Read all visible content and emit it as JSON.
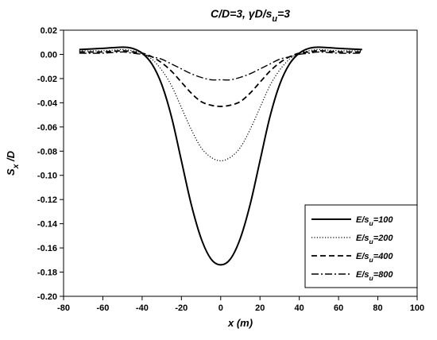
{
  "chart_data": {
    "type": "line",
    "title": {
      "main": "C/D=3, γD/s",
      "sub": "u",
      "tail": "=3"
    },
    "xlabel": {
      "main": "x",
      "unit": "(m)"
    },
    "ylabel": {
      "main": "S",
      "sub": "x",
      "tail": " /D"
    },
    "xlim": [
      -80,
      100
    ],
    "ylim": [
      -0.2,
      0.02
    ],
    "x_ticks": [
      -80,
      -60,
      -40,
      -20,
      0,
      20,
      40,
      60,
      80,
      100
    ],
    "x_tick_labels": [
      "-80",
      "-60",
      "-40",
      "-20",
      "0",
      "20",
      "40",
      "60",
      "80",
      "100"
    ],
    "y_ticks": [
      0.02,
      0.0,
      -0.02,
      -0.04,
      -0.06,
      -0.08,
      -0.1,
      -0.12,
      -0.14,
      -0.16,
      -0.18,
      -0.2
    ],
    "y_tick_labels": [
      "0.02",
      "0.00",
      "-0.02",
      "-0.04",
      "-0.06",
      "-0.08",
      "-0.10",
      "-0.12",
      "-0.14",
      "-0.16",
      "-0.18",
      "-0.20"
    ],
    "grid": false,
    "legend_position": "bottom-right",
    "series": [
      {
        "name": {
          "main": "E/s",
          "sub": "u",
          "tail": "=100"
        },
        "line_style": "solid",
        "x": [
          -72,
          -60,
          -50,
          -45,
          -40,
          -35,
          -30,
          -25,
          -20,
          -15,
          -10,
          -5,
          0,
          5,
          10,
          15,
          20,
          25,
          30,
          35,
          40,
          45,
          50,
          60,
          72
        ],
        "y": [
          0.004,
          0.005,
          0.006,
          0.005,
          0.001,
          -0.008,
          -0.025,
          -0.052,
          -0.088,
          -0.124,
          -0.152,
          -0.169,
          -0.174,
          -0.169,
          -0.152,
          -0.124,
          -0.088,
          -0.052,
          -0.025,
          -0.008,
          0.001,
          0.005,
          0.006,
          0.005,
          0.004
        ]
      },
      {
        "name": {
          "main": "E/s",
          "sub": "u",
          "tail": "=200"
        },
        "line_style": "dotted",
        "x": [
          -72,
          -60,
          -50,
          -45,
          -40,
          -35,
          -30,
          -25,
          -20,
          -15,
          -10,
          -5,
          0,
          5,
          10,
          15,
          20,
          25,
          30,
          35,
          40,
          45,
          50,
          60,
          72
        ],
        "y": [
          0.003,
          0.003,
          0.004,
          0.003,
          0.001,
          -0.004,
          -0.013,
          -0.026,
          -0.044,
          -0.062,
          -0.077,
          -0.085,
          -0.088,
          -0.085,
          -0.077,
          -0.062,
          -0.044,
          -0.026,
          -0.013,
          -0.004,
          0.001,
          0.003,
          0.004,
          0.003,
          0.003
        ]
      },
      {
        "name": {
          "main": "E/s",
          "sub": "u",
          "tail": "=400"
        },
        "line_style": "dashed",
        "x": [
          -72,
          -60,
          -50,
          -45,
          -40,
          -35,
          -30,
          -25,
          -20,
          -15,
          -10,
          -5,
          0,
          5,
          10,
          15,
          20,
          25,
          30,
          35,
          40,
          45,
          50,
          60,
          72
        ],
        "y": [
          0.002,
          0.002,
          0.003,
          0.002,
          0.001,
          -0.002,
          -0.007,
          -0.014,
          -0.023,
          -0.032,
          -0.039,
          -0.042,
          -0.043,
          -0.042,
          -0.039,
          -0.032,
          -0.023,
          -0.014,
          -0.007,
          -0.002,
          0.001,
          0.002,
          0.003,
          0.002,
          0.002
        ]
      },
      {
        "name": {
          "main": "E/s",
          "sub": "u",
          "tail": "=800"
        },
        "line_style": "dash-dot",
        "x": [
          -72,
          -60,
          -50,
          -45,
          -40,
          -35,
          -30,
          -25,
          -20,
          -15,
          -10,
          -5,
          0,
          5,
          10,
          15,
          20,
          25,
          30,
          35,
          40,
          45,
          50,
          60,
          72
        ],
        "y": [
          0.001,
          0.001,
          0.002,
          0.001,
          0.0,
          -0.002,
          -0.004,
          -0.008,
          -0.012,
          -0.016,
          -0.019,
          -0.021,
          -0.021,
          -0.021,
          -0.019,
          -0.016,
          -0.012,
          -0.008,
          -0.004,
          -0.002,
          0.0,
          0.001,
          0.002,
          0.001,
          0.001
        ]
      }
    ]
  }
}
